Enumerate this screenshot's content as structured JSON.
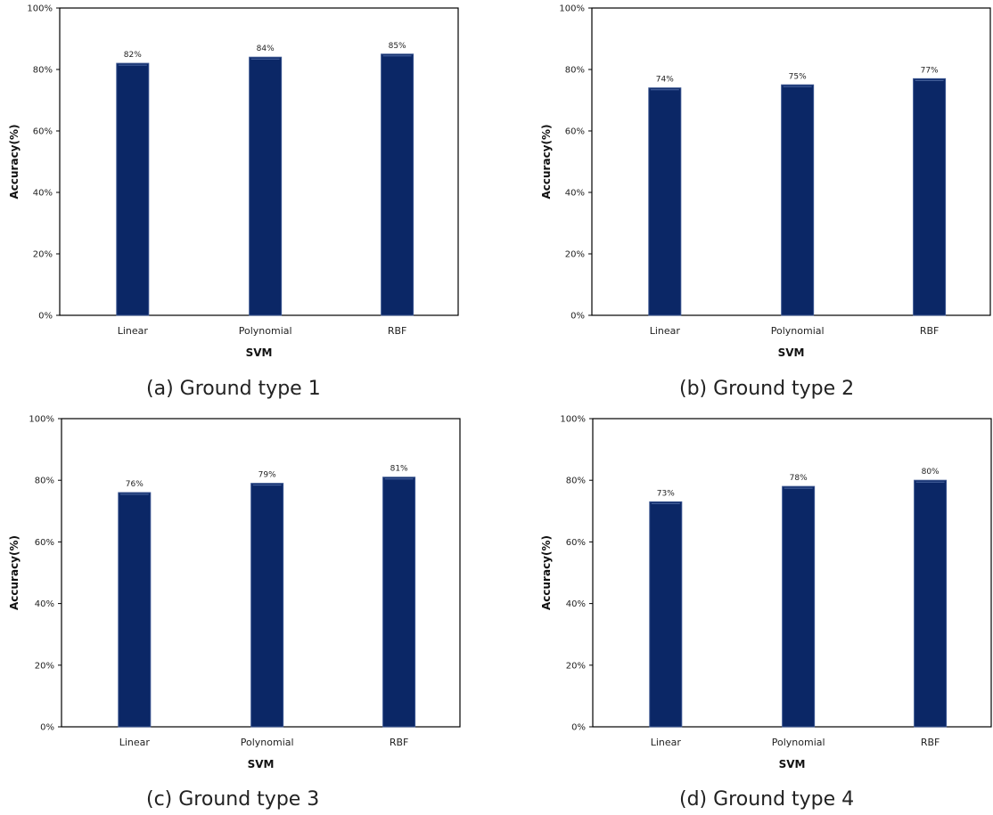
{
  "chart_data": [
    {
      "type": "bar",
      "caption": "(a) Ground type 1",
      "xlabel": "SVM",
      "ylabel": "Accuracy(%)",
      "categories": [
        "Linear",
        "Polynomial",
        "RBF"
      ],
      "values": [
        82,
        84,
        85
      ],
      "data_labels": [
        "82%",
        "84%",
        "85%"
      ],
      "ylim": [
        0,
        100
      ],
      "yticks": [
        "0%",
        "20%",
        "40%",
        "60%",
        "80%",
        "100%"
      ],
      "bar_color": "#0b2766",
      "grid": false
    },
    {
      "type": "bar",
      "caption": "(b) Ground type 2",
      "xlabel": "SVM",
      "ylabel": "Accuracy(%)",
      "categories": [
        "Linear",
        "Polynomial",
        "RBF"
      ],
      "values": [
        74,
        75,
        77
      ],
      "data_labels": [
        "74%",
        "75%",
        "77%"
      ],
      "ylim": [
        0,
        100
      ],
      "yticks": [
        "0%",
        "20%",
        "40%",
        "60%",
        "80%",
        "100%"
      ],
      "bar_color": "#0b2766",
      "grid": false
    },
    {
      "type": "bar",
      "caption": "(c) Ground type 3",
      "xlabel": "SVM",
      "ylabel": "Accuracy(%)",
      "categories": [
        "Linear",
        "Polynomial",
        "RBF"
      ],
      "values": [
        76,
        79,
        81
      ],
      "data_labels": [
        "76%",
        "79%",
        "81%"
      ],
      "ylim": [
        0,
        100
      ],
      "yticks": [
        "0%",
        "20%",
        "40%",
        "60%",
        "80%",
        "100%"
      ],
      "bar_color": "#0b2766",
      "grid": false
    },
    {
      "type": "bar",
      "caption": "(d) Ground type 4",
      "xlabel": "SVM",
      "ylabel": "Accuracy(%)",
      "categories": [
        "Linear",
        "Polynomial",
        "RBF"
      ],
      "values": [
        73,
        78,
        80
      ],
      "data_labels": [
        "73%",
        "78%",
        "80%"
      ],
      "ylim": [
        0,
        100
      ],
      "yticks": [
        "0%",
        "20%",
        "40%",
        "60%",
        "80%",
        "100%"
      ],
      "bar_color": "#0b2766",
      "grid": false
    }
  ]
}
